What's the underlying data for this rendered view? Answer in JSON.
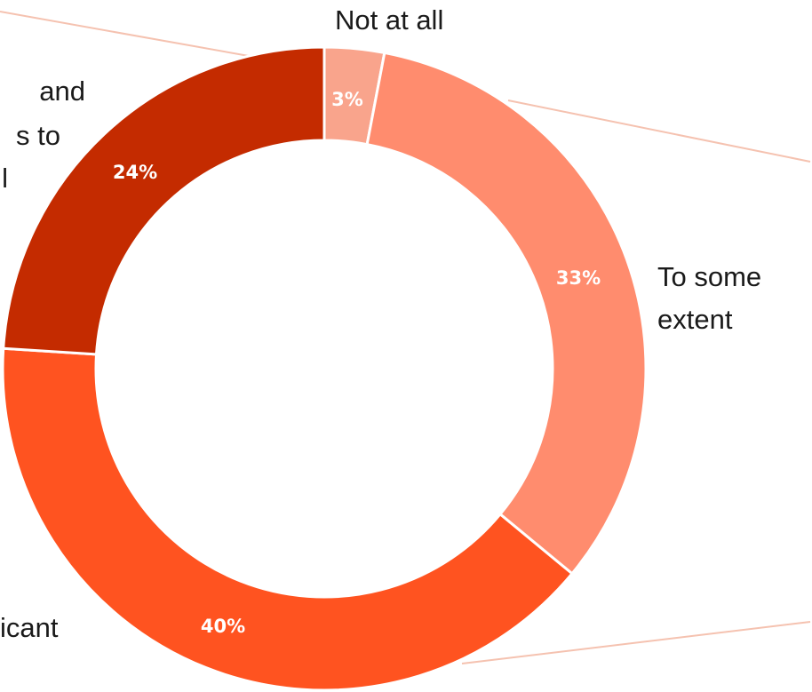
{
  "chart_data": {
    "type": "pie",
    "variant": "donut",
    "categories": [
      "Not at all",
      "To some extent",
      "Significant",
      "Critical"
    ],
    "values": [
      3,
      33,
      40,
      24
    ],
    "value_labels": [
      "3%",
      "33%",
      "40%",
      "24%"
    ],
    "category_labels_visible": [
      [
        "Not at all"
      ],
      [
        "To some",
        "extent"
      ],
      [
        "icant"
      ],
      [
        "and",
        "s to",
        "l"
      ]
    ],
    "colors": [
      "#F9A48C",
      "#FF8C6E",
      "#FF5320",
      "#C42B00"
    ],
    "leader_line_color": "#F5C2B0",
    "legend": "none"
  }
}
